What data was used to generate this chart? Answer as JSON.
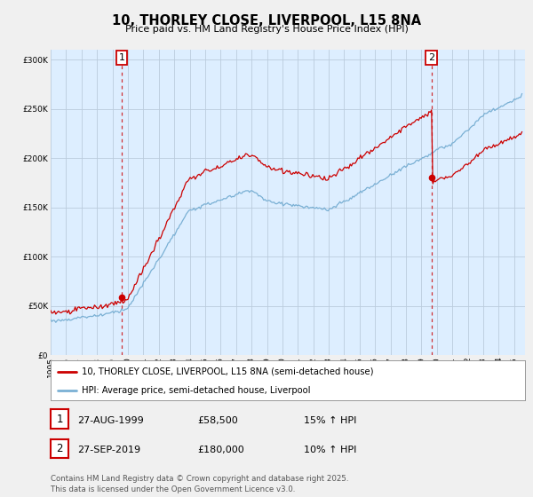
{
  "title": "10, THORLEY CLOSE, LIVERPOOL, L15 8NA",
  "subtitle": "Price paid vs. HM Land Registry's House Price Index (HPI)",
  "legend_line1": "10, THORLEY CLOSE, LIVERPOOL, L15 8NA (semi-detached house)",
  "legend_line2": "HPI: Average price, semi-detached house, Liverpool",
  "annotation1_date": "27-AUG-1999",
  "annotation1_price": "£58,500",
  "annotation1_hpi": "15% ↑ HPI",
  "annotation2_date": "27-SEP-2019",
  "annotation2_price": "£180,000",
  "annotation2_hpi": "10% ↑ HPI",
  "footer": "Contains HM Land Registry data © Crown copyright and database right 2025.\nThis data is licensed under the Open Government Licence v3.0.",
  "red_color": "#cc0000",
  "blue_color": "#7ab0d4",
  "ylim": [
    0,
    310000
  ],
  "yticks": [
    0,
    50000,
    100000,
    150000,
    200000,
    250000,
    300000
  ],
  "plot_bg_color": "#ddeeff",
  "background_color": "#f0f0f0",
  "grid_color": "#bbccdd"
}
